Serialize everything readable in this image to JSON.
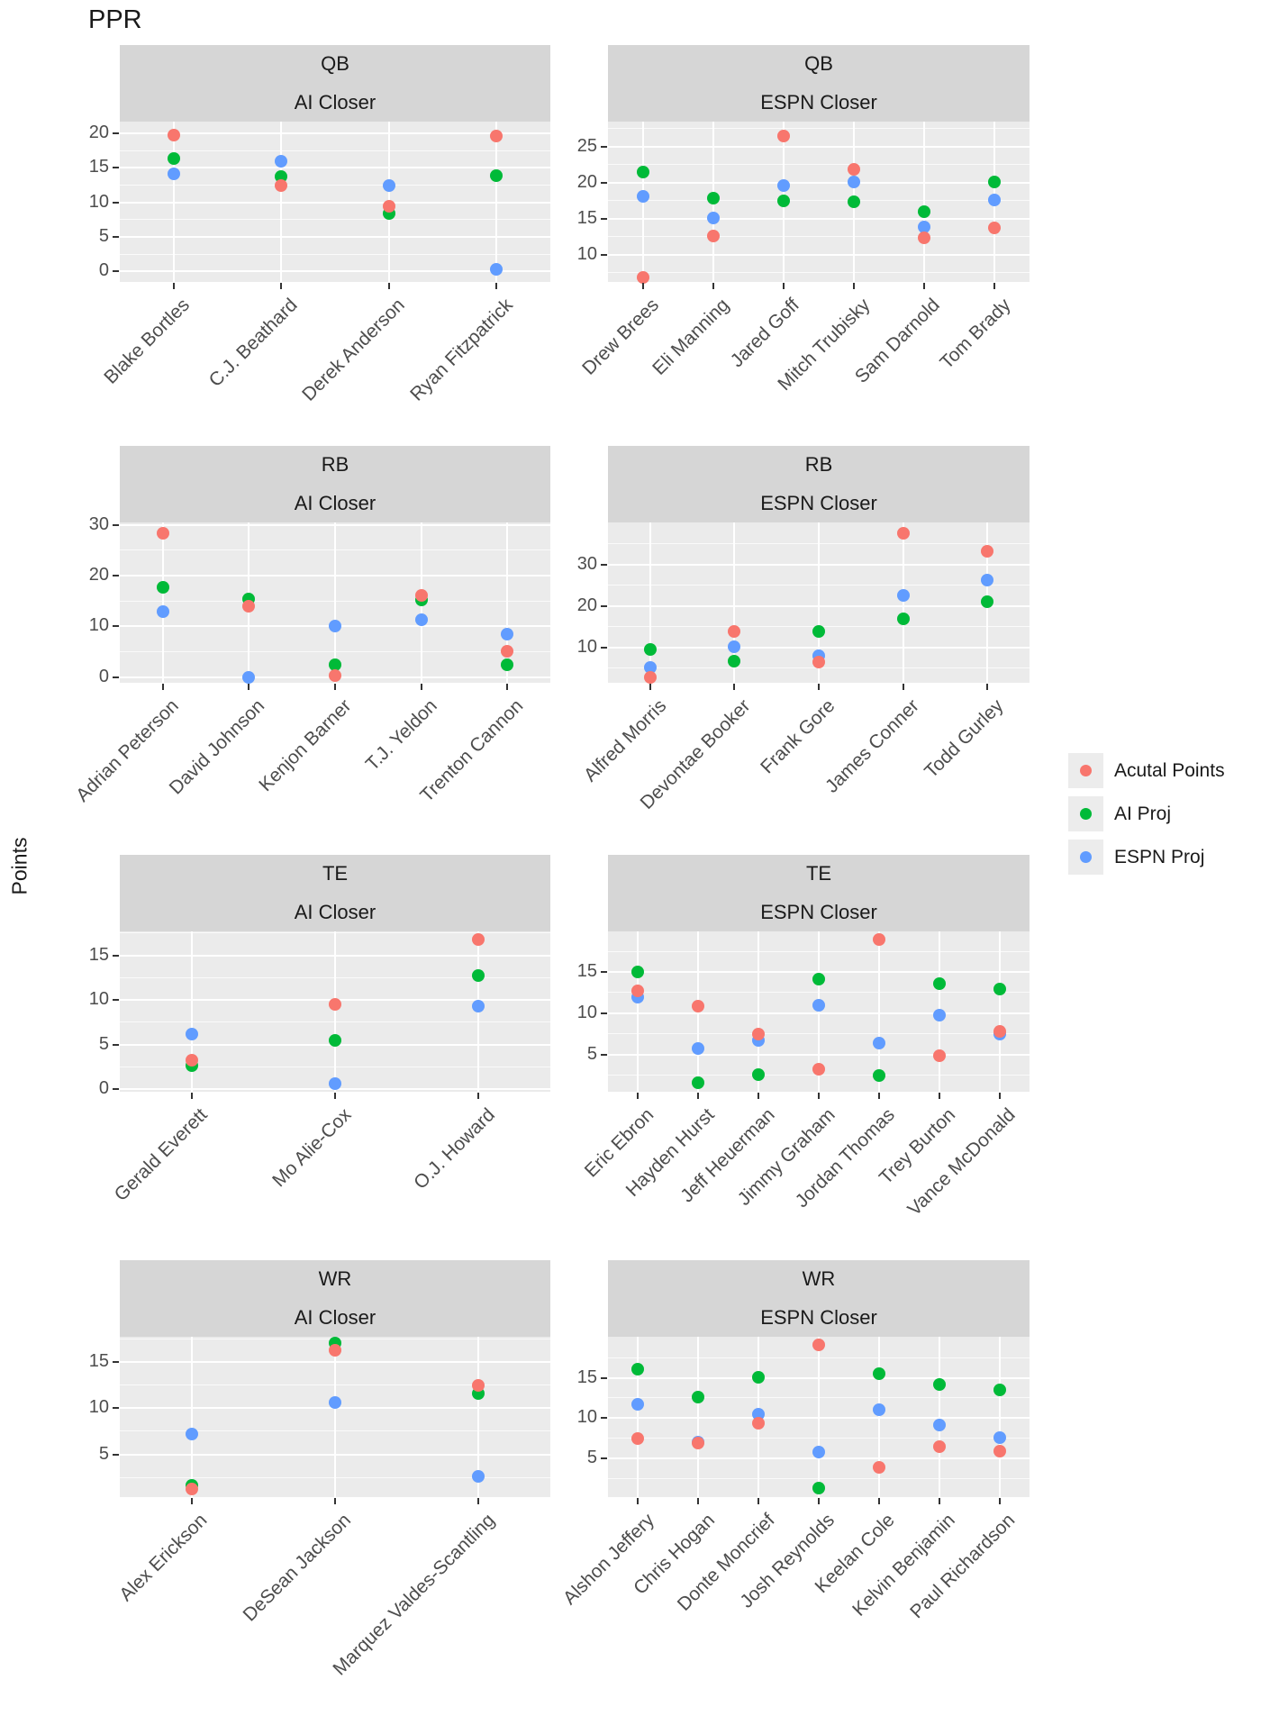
{
  "title": "PPR",
  "y_axis_label": "Points",
  "colors": {
    "actual": "#F8766D",
    "ai": "#00BA38",
    "espn": "#619CFF",
    "panel_bg": "#EBEBEB",
    "strip_bg": "#D6D6D6",
    "gridline": "#FFFFFF"
  },
  "legend": {
    "position": "right",
    "entries": [
      {
        "label": "Acutal Points",
        "color": "#F8766D"
      },
      {
        "label": "AI Proj",
        "color": "#00BA38"
      },
      {
        "label": "ESPN Proj",
        "color": "#619CFF"
      }
    ]
  },
  "chart_data": [
    {
      "type": "scatter",
      "facet_row": "QB",
      "facet_col": "AI Closer",
      "categories": [
        "Blake Bortles",
        "C.J. Beathard",
        "Derek Anderson",
        "Ryan Fitzpatrick"
      ],
      "series": [
        {
          "name": "Acutal Points",
          "color": "#F8766D",
          "values": [
            19.8,
            12.5,
            9.4,
            19.6
          ]
        },
        {
          "name": "AI Proj",
          "color": "#00BA38",
          "values": [
            16.3,
            13.8,
            8.4,
            13.9
          ]
        },
        {
          "name": "ESPN Proj",
          "color": "#619CFF",
          "values": [
            14.2,
            16.0,
            12.4,
            0.3
          ]
        }
      ],
      "yticks": [
        0,
        5,
        10,
        15,
        20
      ],
      "ylim": [
        -1.5,
        21.7
      ],
      "grid": true
    },
    {
      "type": "scatter",
      "facet_row": "QB",
      "facet_col": "ESPN Closer",
      "categories": [
        "Drew Brees",
        "Eli Manning",
        "Jared Goff",
        "Mitch Trubisky",
        "Sam Darnold",
        "Tom Brady"
      ],
      "series": [
        {
          "name": "Acutal Points",
          "color": "#F8766D",
          "values": [
            6.8,
            12.6,
            26.5,
            21.9,
            12.3,
            13.7
          ]
        },
        {
          "name": "AI Proj",
          "color": "#00BA38",
          "values": [
            21.5,
            17.9,
            17.5,
            17.4,
            16.0,
            20.1
          ]
        },
        {
          "name": "ESPN Proj",
          "color": "#619CFF",
          "values": [
            18.1,
            15.1,
            19.6,
            20.1,
            13.9,
            17.6
          ]
        }
      ],
      "yticks": [
        10,
        15,
        20,
        25
      ],
      "ylim": [
        6.2,
        28.5
      ],
      "grid": true
    },
    {
      "type": "scatter",
      "facet_row": "RB",
      "facet_col": "AI Closer",
      "categories": [
        "Adrian Peterson",
        "David Johnson",
        "Kenjon Barner",
        "T.J. Yeldon",
        "Trenton Cannon"
      ],
      "series": [
        {
          "name": "Acutal Points",
          "color": "#F8766D",
          "values": [
            28.4,
            14.0,
            0.4,
            16.1,
            5.1
          ]
        },
        {
          "name": "AI Proj",
          "color": "#00BA38",
          "values": [
            17.7,
            15.4,
            2.5,
            15.2,
            2.5
          ]
        },
        {
          "name": "ESPN Proj",
          "color": "#619CFF",
          "values": [
            12.9,
            0.0,
            10.1,
            11.3,
            8.4
          ]
        }
      ],
      "yticks": [
        0,
        10,
        20,
        30
      ],
      "ylim": [
        -1.1,
        30.5
      ],
      "grid": true
    },
    {
      "type": "scatter",
      "facet_row": "RB",
      "facet_col": "ESPN Closer",
      "categories": [
        "Alfred Morris",
        "Devontae Booker",
        "Frank Gore",
        "James Conner",
        "Todd Gurley"
      ],
      "series": [
        {
          "name": "Acutal Points",
          "color": "#F8766D",
          "values": [
            2.8,
            14.0,
            6.6,
            37.6,
            33.2
          ]
        },
        {
          "name": "AI Proj",
          "color": "#00BA38",
          "values": [
            9.6,
            6.7,
            14.0,
            16.9,
            21.0
          ]
        },
        {
          "name": "ESPN Proj",
          "color": "#619CFF",
          "values": [
            5.2,
            10.2,
            8.0,
            22.6,
            26.3
          ]
        }
      ],
      "yticks": [
        10,
        20,
        30
      ],
      "ylim": [
        1.5,
        40.2
      ],
      "grid": true
    },
    {
      "type": "scatter",
      "facet_row": "TE",
      "facet_col": "AI Closer",
      "categories": [
        "Gerald Everett",
        "Mo Alie-Cox",
        "O.J. Howard"
      ],
      "series": [
        {
          "name": "Acutal Points",
          "color": "#F8766D",
          "values": [
            3.2,
            9.5,
            16.8
          ]
        },
        {
          "name": "AI Proj",
          "color": "#00BA38",
          "values": [
            2.6,
            5.5,
            12.7
          ]
        },
        {
          "name": "ESPN Proj",
          "color": "#619CFF",
          "values": [
            6.2,
            0.6,
            9.3
          ]
        }
      ],
      "yticks": [
        0,
        5,
        10,
        15
      ],
      "ylim": [
        -0.3,
        17.7
      ],
      "grid": true
    },
    {
      "type": "scatter",
      "facet_row": "TE",
      "facet_col": "ESPN Closer",
      "categories": [
        "Eric Ebron",
        "Hayden Hurst",
        "Jeff Heuerman",
        "Jimmy Graham",
        "Jordan Thomas",
        "Trey Burton",
        "Vance McDonald"
      ],
      "series": [
        {
          "name": "Acutal Points",
          "color": "#F8766D",
          "values": [
            12.7,
            10.9,
            7.5,
            3.2,
            18.9,
            4.9,
            7.8
          ]
        },
        {
          "name": "AI Proj",
          "color": "#00BA38",
          "values": [
            15.0,
            1.6,
            2.6,
            14.1,
            2.5,
            13.6,
            12.9
          ]
        },
        {
          "name": "ESPN Proj",
          "color": "#619CFF",
          "values": [
            11.9,
            5.7,
            6.7,
            11.0,
            6.4,
            9.8,
            7.5
          ]
        }
      ],
      "yticks": [
        5,
        10,
        15
      ],
      "ylim": [
        0.5,
        19.9
      ],
      "grid": true
    },
    {
      "type": "scatter",
      "facet_row": "WR",
      "facet_col": "AI Closer",
      "categories": [
        "Alex Erickson",
        "DeSean Jackson",
        "Marquez Valdes-Scantling"
      ],
      "series": [
        {
          "name": "Acutal Points",
          "color": "#F8766D",
          "values": [
            1.3,
            16.2,
            12.5
          ]
        },
        {
          "name": "AI Proj",
          "color": "#00BA38",
          "values": [
            1.7,
            17.0,
            11.6
          ]
        },
        {
          "name": "ESPN Proj",
          "color": "#619CFF",
          "values": [
            7.2,
            10.6,
            2.6
          ]
        }
      ],
      "yticks": [
        5,
        10,
        15
      ],
      "ylim": [
        0.4,
        17.7
      ],
      "grid": true
    },
    {
      "type": "scatter",
      "facet_row": "WR",
      "facet_col": "ESPN Closer",
      "categories": [
        "Alshon Jeffery",
        "Chris Hogan",
        "Donte Moncrief",
        "Josh Reynolds",
        "Keelan Cole",
        "Kelvin Benjamin",
        "Paul Richardson"
      ],
      "series": [
        {
          "name": "Acutal Points",
          "color": "#F8766D",
          "values": [
            7.5,
            6.9,
            9.4,
            19.1,
            3.9,
            6.5,
            5.9
          ]
        },
        {
          "name": "AI Proj",
          "color": "#00BA38",
          "values": [
            16.1,
            12.6,
            15.1,
            1.3,
            15.5,
            14.2,
            13.5
          ]
        },
        {
          "name": "ESPN Proj",
          "color": "#619CFF",
          "values": [
            11.7,
            7.0,
            10.5,
            5.8,
            11.0,
            9.1,
            7.6
          ]
        }
      ],
      "yticks": [
        5,
        10,
        15
      ],
      "ylim": [
        0.2,
        20.1
      ],
      "grid": true
    }
  ]
}
